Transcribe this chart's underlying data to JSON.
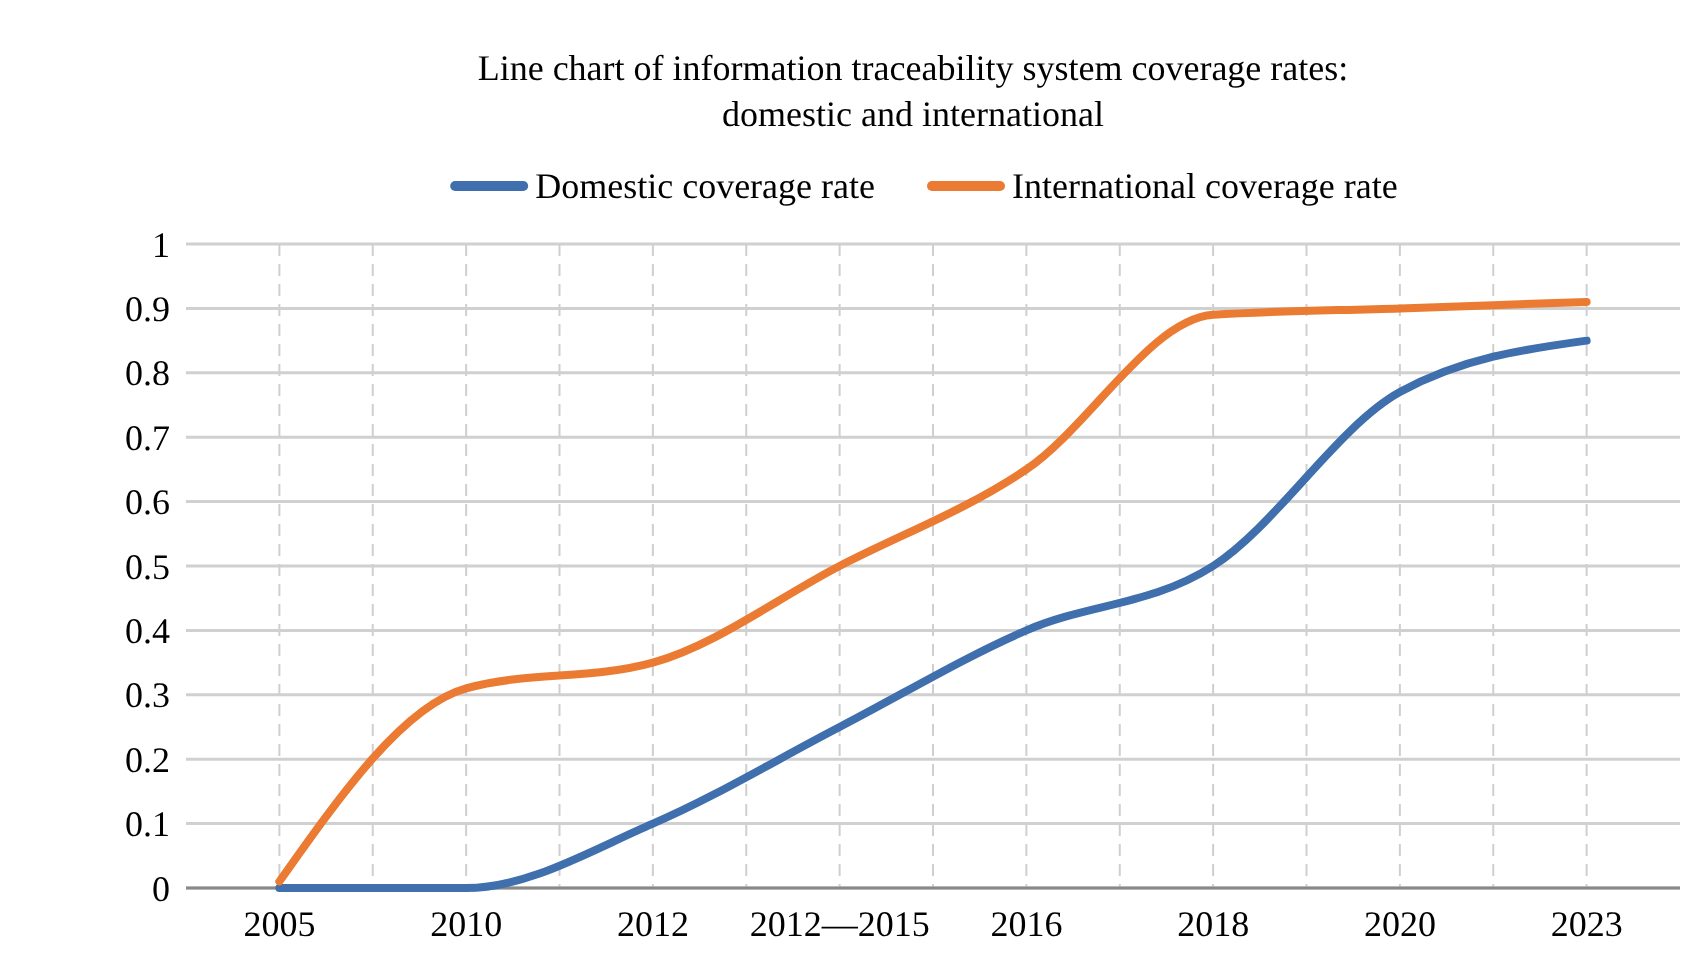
{
  "chart_data": {
    "type": "line",
    "title": "Line chart of information traceability system coverage rates:\ndomestic and international",
    "categories": [
      "2005",
      "2010",
      "2012",
      "2012—2015",
      "2016",
      "2018",
      "2020",
      "2023"
    ],
    "series": [
      {
        "name": "Domestic coverage rate",
        "color": "#3f6fad",
        "values": [
          0,
          0,
          0.1,
          0.25,
          0.4,
          0.5,
          0.77,
          0.85
        ]
      },
      {
        "name": "International coverage rate",
        "color": "#eb7b32",
        "values": [
          0.01,
          0.31,
          0.35,
          0.5,
          0.65,
          0.89,
          0.9,
          0.91
        ]
      }
    ],
    "ylim": [
      0,
      1
    ],
    "yticks": [
      0,
      0.1,
      0.2,
      0.3,
      0.4,
      0.5,
      0.6,
      0.7,
      0.8,
      0.9,
      1
    ],
    "grid": true,
    "legend": "top",
    "marker": "none",
    "line_style": "solid"
  }
}
